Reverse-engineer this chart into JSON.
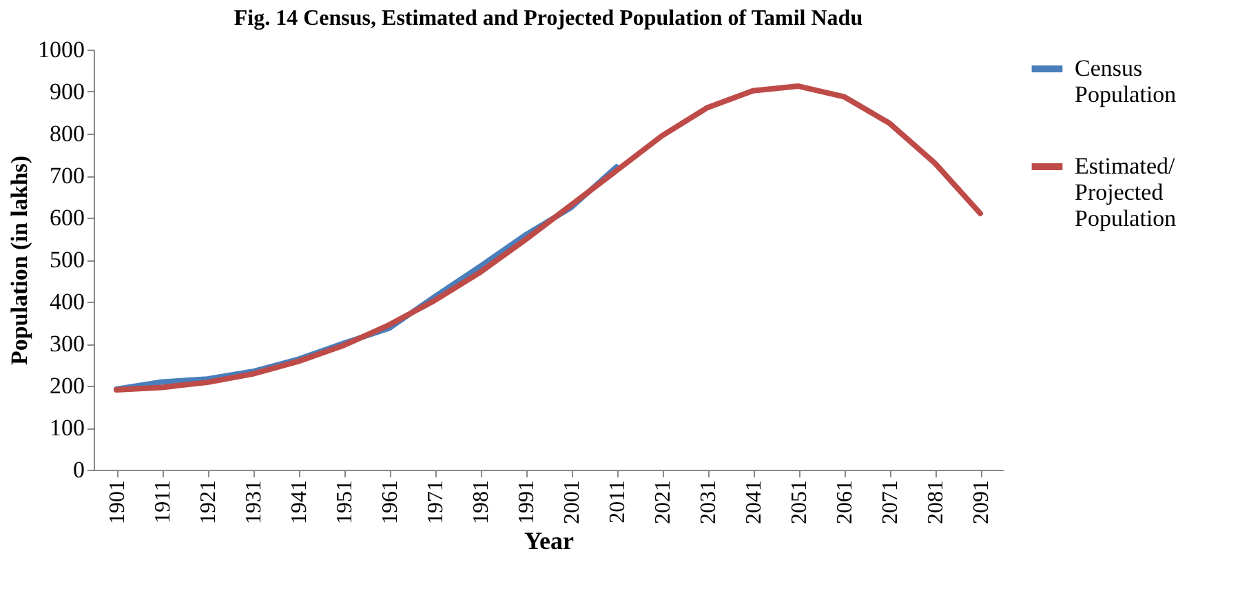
{
  "chart_data": {
    "type": "line",
    "title": "Fig. 14 Census, Estimated and Projected Population of Tamil Nadu",
    "xlabel": "Year",
    "ylabel": "Population (in lakhs)",
    "categories": [
      "1901",
      "1911",
      "1921",
      "1931",
      "1941",
      "1951",
      "1961",
      "1971",
      "1981",
      "1991",
      "2001",
      "2011",
      "2021",
      "2031",
      "2041",
      "2051",
      "2061",
      "2071",
      "2081",
      "2091"
    ],
    "series": [
      {
        "name": "Census Population",
        "color": "#4a7ebb",
        "values": [
          192,
          209,
          216,
          234,
          263,
          301,
          337,
          412,
          484,
          559,
          624,
          721,
          null,
          null,
          null,
          null,
          null,
          null,
          null,
          null
        ]
      },
      {
        "name": "Estimated/ Projected Population",
        "color": "#be4b48",
        "values": [
          190,
          196,
          208,
          228,
          258,
          296,
          345,
          403,
          470,
          548,
          630,
          712,
          795,
          862,
          902,
          913,
          888,
          825,
          730,
          610
        ]
      }
    ],
    "ylim": [
      0,
      1000
    ],
    "yticks": [
      0,
      100,
      200,
      300,
      400,
      500,
      600,
      700,
      800,
      900,
      1000
    ],
    "grid": false,
    "legend": "right"
  }
}
